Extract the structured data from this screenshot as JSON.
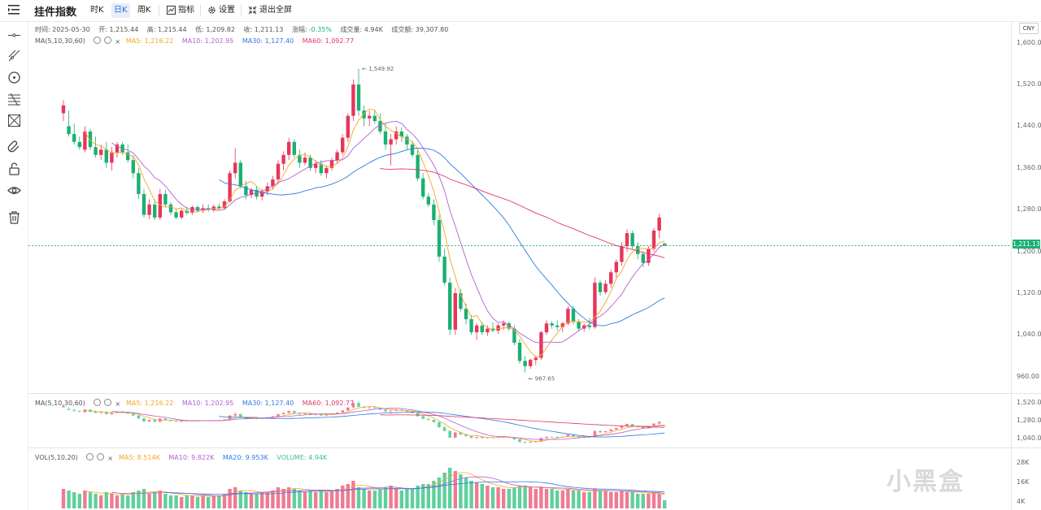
{
  "toolbar": {
    "title": "挂件指数",
    "btn_time": "时K",
    "btn_day": "日K",
    "btn_week": "周K",
    "btn_indicator": "指标",
    "btn_settings": "设置",
    "btn_exit_fullscreen": "退出全屏"
  },
  "info_line": {
    "time": "时间: 2025-05-30",
    "open": "开: 1,215.44",
    "high": "高: 1,215.44",
    "low": "低: 1,209.82",
    "close": "收: 1,211.13",
    "change_label": "涨幅:",
    "change_value": "-0.35%",
    "volume": "成交量: 4.94K",
    "amount": "成交额: 39,307.80"
  },
  "ma_legend": {
    "label": "MA(5,10,30,60)",
    "ma5": "MA5: 1,216.22",
    "ma10": "MA10: 1,202.95",
    "ma30": "MA30: 1,127.40",
    "ma60": "MA60: 1,092.77"
  },
  "vol_legend": {
    "label": "VOL(5,10,20)",
    "ma5": "MA5: 8.514K",
    "ma10": "MA10: 9.822K",
    "ma20": "MA20: 9.953K",
    "volume": "VOLUME: 4.94K"
  },
  "axis": {
    "currency": "CNY",
    "main_ticks": [
      "1,600.00",
      "1,520.00",
      "1,440.00",
      "1,360.00",
      "1,280.00",
      "1,200.00",
      "1,120.00",
      "1,040.00",
      "960.00"
    ],
    "mini_ticks": [
      "1,520.00",
      "1,280.00",
      "1,040.00"
    ],
    "vol_ticks": [
      "28K",
      "16K",
      "4K"
    ],
    "current_price": "1,211.13"
  },
  "annotations": {
    "high": "1,549.92",
    "low": "967.65"
  },
  "watermark": "小黑盒",
  "colors": {
    "up": "#e8355a",
    "down": "#1bb072",
    "ma5": "#f5a623",
    "ma10": "#b35fd0",
    "ma30": "#2e7be0",
    "ma60": "#e0366a",
    "vol_up": "#f07a93",
    "vol_down": "#5fcf9e"
  },
  "chart_data": {
    "type": "candlestick",
    "price_range": [
      930,
      1640
    ],
    "candles": [
      [
        1465,
        1490,
        1450,
        1480
      ],
      [
        1440,
        1470,
        1420,
        1425
      ],
      [
        1425,
        1445,
        1405,
        1410
      ],
      [
        1410,
        1420,
        1395,
        1400
      ],
      [
        1395,
        1440,
        1390,
        1430
      ],
      [
        1430,
        1435,
        1395,
        1400
      ],
      [
        1400,
        1420,
        1380,
        1385
      ],
      [
        1385,
        1405,
        1375,
        1395
      ],
      [
        1395,
        1410,
        1360,
        1370
      ],
      [
        1370,
        1400,
        1355,
        1390
      ],
      [
        1390,
        1410,
        1380,
        1405
      ],
      [
        1405,
        1410,
        1385,
        1390
      ],
      [
        1390,
        1405,
        1370,
        1375
      ],
      [
        1375,
        1385,
        1340,
        1350
      ],
      [
        1350,
        1360,
        1300,
        1310
      ],
      [
        1310,
        1320,
        1265,
        1270
      ],
      [
        1270,
        1300,
        1262,
        1290
      ],
      [
        1290,
        1300,
        1260,
        1265
      ],
      [
        1265,
        1320,
        1260,
        1310
      ],
      [
        1310,
        1318,
        1285,
        1290
      ],
      [
        1290,
        1295,
        1270,
        1275
      ],
      [
        1275,
        1282,
        1262,
        1265
      ],
      [
        1265,
        1282,
        1262,
        1278
      ],
      [
        1278,
        1286,
        1270,
        1274
      ],
      [
        1274,
        1288,
        1270,
        1285
      ],
      [
        1285,
        1288,
        1275,
        1278
      ],
      [
        1278,
        1290,
        1274,
        1283
      ],
      [
        1283,
        1290,
        1276,
        1280
      ],
      [
        1280,
        1290,
        1275,
        1286
      ],
      [
        1286,
        1292,
        1280,
        1283
      ],
      [
        1283,
        1300,
        1280,
        1296
      ],
      [
        1296,
        1355,
        1294,
        1350
      ],
      [
        1350,
        1398,
        1340,
        1370
      ],
      [
        1370,
        1375,
        1320,
        1325
      ],
      [
        1325,
        1335,
        1300,
        1308
      ],
      [
        1308,
        1322,
        1302,
        1318
      ],
      [
        1318,
        1325,
        1300,
        1305
      ],
      [
        1305,
        1320,
        1298,
        1315
      ],
      [
        1315,
        1332,
        1308,
        1325
      ],
      [
        1325,
        1345,
        1318,
        1338
      ],
      [
        1338,
        1375,
        1330,
        1368
      ],
      [
        1368,
        1392,
        1355,
        1385
      ],
      [
        1385,
        1418,
        1375,
        1410
      ],
      [
        1410,
        1415,
        1380,
        1385
      ],
      [
        1385,
        1395,
        1360,
        1370
      ],
      [
        1370,
        1390,
        1365,
        1380
      ],
      [
        1380,
        1385,
        1355,
        1360
      ],
      [
        1360,
        1375,
        1350,
        1368
      ],
      [
        1368,
        1375,
        1345,
        1350
      ],
      [
        1350,
        1365,
        1340,
        1360
      ],
      [
        1360,
        1380,
        1355,
        1375
      ],
      [
        1375,
        1395,
        1368,
        1390
      ],
      [
        1390,
        1425,
        1385,
        1418
      ],
      [
        1418,
        1465,
        1410,
        1460
      ],
      [
        1460,
        1530,
        1450,
        1520
      ],
      [
        1520,
        1550,
        1460,
        1470
      ],
      [
        1470,
        1480,
        1440,
        1455
      ],
      [
        1455,
        1470,
        1440,
        1460
      ],
      [
        1460,
        1470,
        1445,
        1450
      ],
      [
        1450,
        1465,
        1425,
        1430
      ],
      [
        1430,
        1445,
        1395,
        1405
      ],
      [
        1405,
        1425,
        1365,
        1415
      ],
      [
        1415,
        1440,
        1405,
        1430
      ],
      [
        1430,
        1438,
        1410,
        1420
      ],
      [
        1420,
        1425,
        1395,
        1405
      ],
      [
        1405,
        1412,
        1380,
        1385
      ],
      [
        1385,
        1395,
        1335,
        1340
      ],
      [
        1340,
        1350,
        1300,
        1305
      ],
      [
        1305,
        1312,
        1285,
        1290
      ],
      [
        1290,
        1300,
        1250,
        1260
      ],
      [
        1260,
        1270,
        1180,
        1190
      ],
      [
        1190,
        1205,
        1135,
        1140
      ],
      [
        1140,
        1150,
        1040,
        1050
      ],
      [
        1050,
        1130,
        1040,
        1120
      ],
      [
        1120,
        1128,
        1085,
        1090
      ],
      [
        1090,
        1100,
        1060,
        1070
      ],
      [
        1070,
        1078,
        1040,
        1045
      ],
      [
        1045,
        1062,
        1030,
        1058
      ],
      [
        1058,
        1064,
        1040,
        1045
      ],
      [
        1045,
        1058,
        1038,
        1052
      ],
      [
        1052,
        1064,
        1045,
        1048
      ],
      [
        1048,
        1062,
        1042,
        1058
      ],
      [
        1058,
        1068,
        1050,
        1062
      ],
      [
        1062,
        1066,
        1048,
        1052
      ],
      [
        1052,
        1058,
        1020,
        1025
      ],
      [
        1025,
        1032,
        985,
        990
      ],
      [
        990,
        1000,
        968,
        980
      ],
      [
        980,
        995,
        975,
        992
      ],
      [
        992,
        1000,
        982,
        996
      ],
      [
        996,
        1048,
        992,
        1045
      ],
      [
        1045,
        1068,
        1040,
        1062
      ],
      [
        1062,
        1066,
        1052,
        1058
      ],
      [
        1058,
        1068,
        1048,
        1055
      ],
      [
        1055,
        1065,
        1045,
        1062
      ],
      [
        1062,
        1095,
        1058,
        1090
      ],
      [
        1090,
        1095,
        1060,
        1065
      ],
      [
        1065,
        1070,
        1048,
        1052
      ],
      [
        1052,
        1062,
        1046,
        1058
      ],
      [
        1058,
        1072,
        1050,
        1055
      ],
      [
        1055,
        1150,
        1052,
        1140
      ],
      [
        1140,
        1145,
        1115,
        1122
      ],
      [
        1122,
        1145,
        1118,
        1138
      ],
      [
        1138,
        1165,
        1130,
        1160
      ],
      [
        1160,
        1185,
        1150,
        1180
      ],
      [
        1180,
        1218,
        1172,
        1210
      ],
      [
        1210,
        1242,
        1200,
        1235
      ],
      [
        1235,
        1240,
        1205,
        1210
      ],
      [
        1210,
        1218,
        1185,
        1195
      ],
      [
        1195,
        1200,
        1170,
        1178
      ],
      [
        1178,
        1210,
        1172,
        1205
      ],
      [
        1205,
        1245,
        1200,
        1240
      ],
      [
        1240,
        1272,
        1225,
        1265
      ],
      [
        1215.44,
        1215.44,
        1209.82,
        1211.13
      ]
    ],
    "volume_k": [
      12,
      11,
      10,
      9,
      11,
      10,
      9,
      8,
      10,
      9,
      8,
      9,
      8,
      10,
      11,
      12,
      9,
      10,
      11,
      9,
      8,
      8,
      7,
      8,
      8,
      7,
      8,
      7,
      8,
      8,
      9,
      12,
      13,
      11,
      10,
      9,
      9,
      10,
      10,
      11,
      13,
      12,
      13,
      12,
      11,
      10,
      11,
      10,
      11,
      10,
      11,
      12,
      14,
      15,
      17,
      13,
      12,
      11,
      11,
      12,
      13,
      14,
      12,
      11,
      12,
      12,
      14,
      15,
      15,
      17,
      19,
      22,
      25,
      23,
      21,
      19,
      17,
      16,
      15,
      14,
      13,
      13,
      12,
      12,
      13,
      14,
      14,
      13,
      12,
      13,
      12,
      12,
      11,
      11,
      12,
      11,
      11,
      10,
      10,
      12,
      11,
      11,
      10,
      10,
      11,
      10,
      10,
      9,
      9,
      9,
      10,
      9,
      5
    ]
  }
}
